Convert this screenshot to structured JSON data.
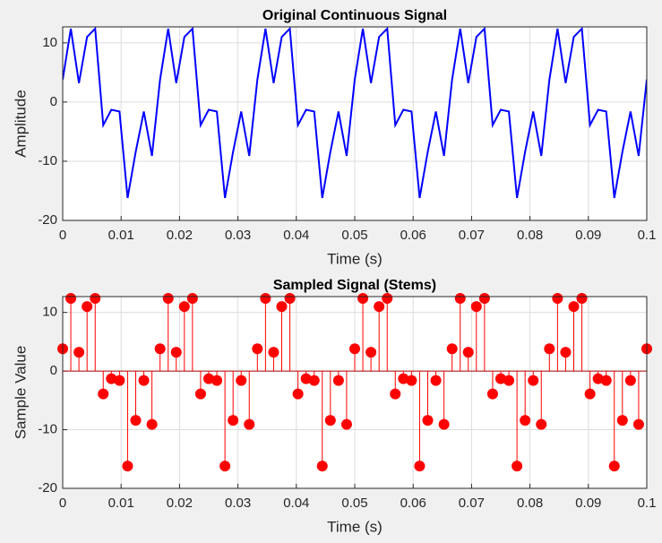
{
  "chart_data": [
    {
      "type": "line",
      "title": "Original Continuous Signal",
      "xlabel": "Time (s)",
      "ylabel": "Amplitude",
      "grid": true,
      "xlim": [
        0,
        0.1
      ],
      "ylim": [
        -20,
        12.7
      ],
      "xticks": [
        0,
        0.01,
        0.02,
        0.03,
        0.04,
        0.05,
        0.06,
        0.07,
        0.08,
        0.09,
        0.1
      ],
      "yticks": [
        -20,
        -10,
        0,
        10
      ],
      "series": [
        {
          "color": "#0000ff",
          "x": [
            0,
            0.00139,
            0.00278,
            0.00417,
            0.00556,
            0.00694,
            0.00833,
            0.00972,
            0.01111,
            0.0125,
            0.01389,
            0.01528,
            0.01667,
            0.01806,
            0.01944,
            0.02083,
            0.02222,
            0.02361,
            0.025,
            0.02639,
            0.02778,
            0.02917,
            0.03056,
            0.03194,
            0.03333,
            0.03472,
            0.03611,
            0.0375,
            0.03889,
            0.04028,
            0.04167,
            0.04306,
            0.04444,
            0.04583,
            0.04722,
            0.04861,
            0.05,
            0.05139,
            0.05278,
            0.05417,
            0.05556,
            0.05694,
            0.05833,
            0.05972,
            0.06111,
            0.0625,
            0.06389,
            0.06528,
            0.06667,
            0.06806,
            0.06944,
            0.07083,
            0.07222,
            0.07361,
            0.075,
            0.07639,
            0.07778,
            0.07917,
            0.08056,
            0.08194,
            0.08333,
            0.08472,
            0.08611,
            0.0875,
            0.08889,
            0.09028,
            0.09167,
            0.09306,
            0.09444,
            0.09583,
            0.09722,
            0.09861,
            0.1
          ],
          "values": [
            3.8,
            12.4,
            3.2,
            11,
            12.4,
            -3.9,
            -1.3,
            -1.6,
            -16.2,
            -8.4,
            -1.6,
            -9.1,
            3.8,
            12.4,
            3.2,
            11,
            12.4,
            -3.9,
            -1.3,
            -1.6,
            -16.2,
            -8.4,
            -1.6,
            -9.1,
            3.8,
            12.4,
            3.2,
            11,
            12.4,
            -3.9,
            -1.3,
            -1.6,
            -16.2,
            -8.4,
            -1.6,
            -9.1,
            3.8,
            12.4,
            3.2,
            11,
            12.4,
            -3.9,
            -1.3,
            -1.6,
            -16.2,
            -8.4,
            -1.6,
            -9.1,
            3.8,
            12.4,
            3.2,
            11,
            12.4,
            -3.9,
            -1.3,
            -1.6,
            -16.2,
            -8.4,
            -1.6,
            -9.1,
            3.8,
            12.4,
            3.2,
            11,
            12.4,
            -3.9,
            -1.3,
            -1.6,
            -16.2,
            -8.4,
            -1.6,
            -9.1,
            3.8
          ]
        }
      ]
    },
    {
      "type": "stem",
      "title": "Sampled Signal (Stems)",
      "xlabel": "Time (s)",
      "ylabel": "Sample Value",
      "grid": true,
      "xlim": [
        0,
        0.1
      ],
      "ylim": [
        -20,
        12.7
      ],
      "xticks": [
        0,
        0.01,
        0.02,
        0.03,
        0.04,
        0.05,
        0.06,
        0.07,
        0.08,
        0.09,
        0.1
      ],
      "yticks": [
        -20,
        -10,
        0,
        10
      ],
      "series": [
        {
          "color": "#ff0000",
          "x": [
            0,
            0.00139,
            0.00278,
            0.00417,
            0.00556,
            0.00694,
            0.00833,
            0.00972,
            0.01111,
            0.0125,
            0.01389,
            0.01528,
            0.01667,
            0.01806,
            0.01944,
            0.02083,
            0.02222,
            0.02361,
            0.025,
            0.02639,
            0.02778,
            0.02917,
            0.03056,
            0.03194,
            0.03333,
            0.03472,
            0.03611,
            0.0375,
            0.03889,
            0.04028,
            0.04167,
            0.04306,
            0.04444,
            0.04583,
            0.04722,
            0.04861,
            0.05,
            0.05139,
            0.05278,
            0.05417,
            0.05556,
            0.05694,
            0.05833,
            0.05972,
            0.06111,
            0.0625,
            0.06389,
            0.06528,
            0.06667,
            0.06806,
            0.06944,
            0.07083,
            0.07222,
            0.07361,
            0.075,
            0.07639,
            0.07778,
            0.07917,
            0.08056,
            0.08194,
            0.08333,
            0.08472,
            0.08611,
            0.0875,
            0.08889,
            0.09028,
            0.09167,
            0.09306,
            0.09444,
            0.09583,
            0.09722,
            0.09861,
            0.1
          ],
          "values": [
            3.8,
            12.4,
            3.2,
            11,
            12.4,
            -3.9,
            -1.3,
            -1.6,
            -16.2,
            -8.4,
            -1.6,
            -9.1,
            3.8,
            12.4,
            3.2,
            11,
            12.4,
            -3.9,
            -1.3,
            -1.6,
            -16.2,
            -8.4,
            -1.6,
            -9.1,
            3.8,
            12.4,
            3.2,
            11,
            12.4,
            -3.9,
            -1.3,
            -1.6,
            -16.2,
            -8.4,
            -1.6,
            -9.1,
            3.8,
            12.4,
            3.2,
            11,
            12.4,
            -3.9,
            -1.3,
            -1.6,
            -16.2,
            -8.4,
            -1.6,
            -9.1,
            3.8,
            12.4,
            3.2,
            11,
            12.4,
            -3.9,
            -1.3,
            -1.6,
            -16.2,
            -8.4,
            -1.6,
            -9.1,
            3.8,
            12.4,
            3.2,
            11,
            12.4,
            -3.9,
            -1.3,
            -1.6,
            -16.2,
            -8.4,
            -1.6,
            -9.1,
            3.8
          ]
        }
      ]
    }
  ]
}
